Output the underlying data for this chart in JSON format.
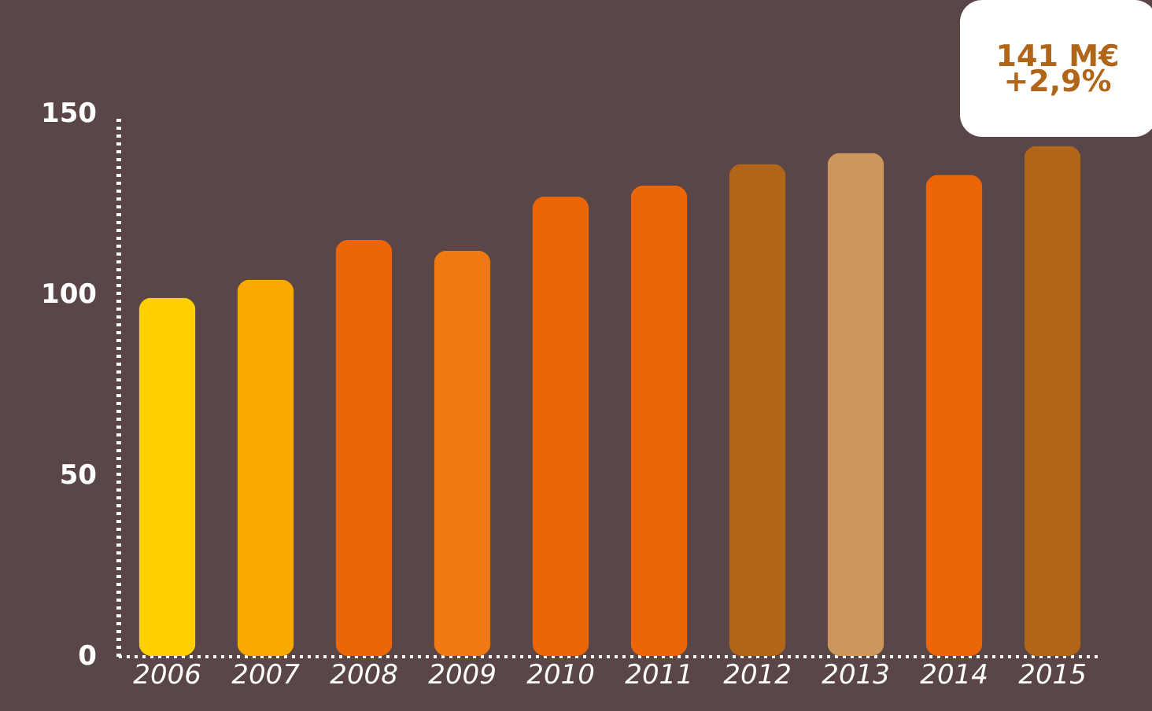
{
  "chart_data": {
    "type": "bar",
    "categories": [
      "2006",
      "2007",
      "2008",
      "2009",
      "2010",
      "2011",
      "2012",
      "2013",
      "2014",
      "2015"
    ],
    "values": [
      99,
      104,
      115,
      112,
      127,
      130,
      136,
      139,
      133,
      141
    ],
    "colors": [
      "#ffd000",
      "#f9a800",
      "#ec6608",
      "#ef7a14",
      "#ec6608",
      "#ec6608",
      "#b06518",
      "#cd965c",
      "#ec6608",
      "#b06518"
    ],
    "ylim": [
      0,
      150
    ],
    "yticks": [
      0,
      50,
      100,
      150
    ],
    "grid": false,
    "annotations": [
      "141 M€",
      "+2,9%"
    ]
  }
}
